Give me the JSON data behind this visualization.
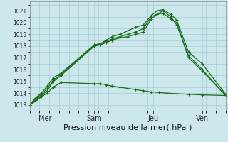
{
  "bg_color": "#cce8ec",
  "grid_color": "#aaccd4",
  "line_color": "#1a6b1a",
  "xlabel": "Pression niveau de la mer( hPa )",
  "ylim": [
    1012.5,
    1021.8
  ],
  "yticks": [
    1013,
    1014,
    1015,
    1016,
    1017,
    1018,
    1019,
    1020,
    1021
  ],
  "xtick_labels": [
    "Mer",
    "Sam",
    "Jeu",
    "Ven"
  ],
  "xtick_positions": [
    8,
    33,
    63,
    88
  ],
  "xlim": [
    0,
    100
  ],
  "series": [
    [
      [
        0,
        3,
        6,
        9,
        12,
        16,
        33,
        36,
        39,
        42,
        46,
        50,
        54,
        58,
        62,
        66,
        70,
        75,
        81,
        88,
        100
      ],
      [
        1013.0,
        1013.3,
        1013.7,
        1014.0,
        1014.5,
        1014.9,
        1014.8,
        1014.8,
        1014.7,
        1014.6,
        1014.5,
        1014.4,
        1014.3,
        1014.2,
        1014.1,
        1014.05,
        1014.0,
        1013.95,
        1013.9,
        1013.85,
        1013.8
      ]
    ],
    [
      [
        0,
        3,
        6,
        9,
        12,
        16,
        33,
        36,
        39,
        42,
        46,
        50,
        54,
        58,
        62,
        65,
        68,
        72,
        75,
        81,
        88,
        100
      ],
      [
        1013.0,
        1013.4,
        1013.8,
        1014.2,
        1015.0,
        1015.5,
        1018.0,
        1018.1,
        1018.3,
        1018.5,
        1018.7,
        1018.8,
        1019.0,
        1019.2,
        1020.3,
        1020.7,
        1021.0,
        1020.5,
        1019.8,
        1017.2,
        1016.0,
        1013.8
      ]
    ],
    [
      [
        0,
        3,
        6,
        9,
        12,
        16,
        33,
        36,
        39,
        42,
        46,
        50,
        54,
        58,
        62,
        65,
        68,
        72,
        75,
        81,
        88,
        100
      ],
      [
        1013.0,
        1013.5,
        1013.9,
        1014.4,
        1015.1,
        1015.6,
        1018.1,
        1018.2,
        1018.4,
        1018.6,
        1018.8,
        1019.0,
        1019.2,
        1019.5,
        1020.5,
        1020.7,
        1020.8,
        1020.3,
        1020.0,
        1017.0,
        1015.9,
        1013.8
      ]
    ],
    [
      [
        0,
        3,
        6,
        9,
        12,
        16,
        33,
        36,
        39,
        42,
        46,
        50,
        54,
        58,
        62,
        65,
        68,
        72,
        75,
        81,
        88,
        100
      ],
      [
        1013.0,
        1013.6,
        1014.0,
        1014.6,
        1015.3,
        1015.7,
        1018.1,
        1018.2,
        1018.5,
        1018.8,
        1019.0,
        1019.3,
        1019.6,
        1019.8,
        1020.6,
        1021.0,
        1021.1,
        1020.7,
        1020.2,
        1017.5,
        1016.5,
        1013.9
      ]
    ]
  ],
  "ylabel_fontsize": 5.5,
  "xlabel_fontsize": 8.0,
  "xtick_fontsize": 7.0,
  "line_width": 0.9,
  "marker_size": 3.5
}
